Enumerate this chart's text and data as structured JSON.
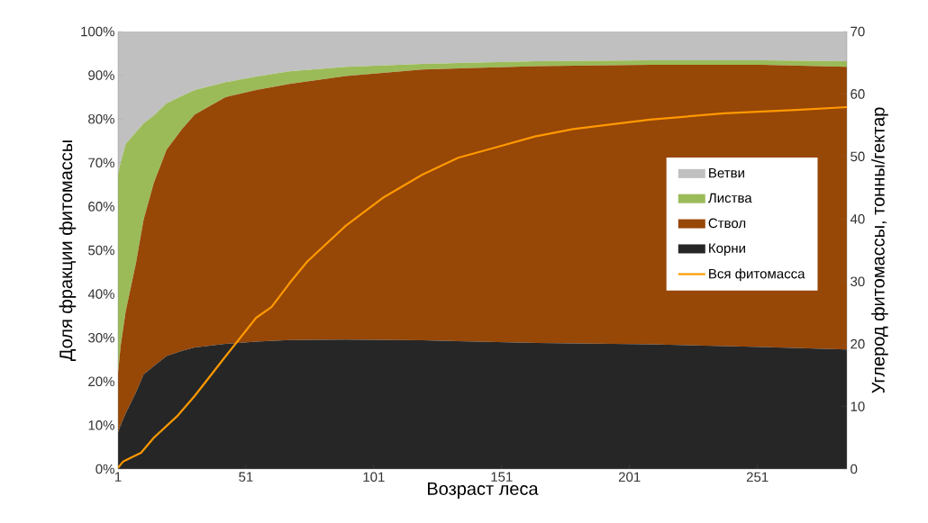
{
  "chart_data": {
    "type": "area",
    "stacked": true,
    "xlabel": "Возраст леса",
    "ylabel": "Доля фракции фитомассы",
    "y2label": "Углерод фитомассы, тонны/гектар",
    "x": [
      1,
      2,
      4,
      8,
      11,
      15,
      20,
      26,
      31,
      43,
      55,
      68,
      90,
      120,
      165,
      209,
      253,
      286
    ],
    "series": [
      {
        "name": "Корни",
        "color": "#262626",
        "values": [
          8.4,
          10,
          12.7,
          17.5,
          21.6,
          23.5,
          25.8,
          27,
          27.8,
          28.6,
          29.1,
          29.5,
          29.6,
          29.4,
          28.8,
          28.5,
          27.9,
          27.3
        ]
      },
      {
        "name": "Ствол",
        "color": "#974706",
        "values": [
          13.5,
          18,
          23.3,
          29.5,
          35.4,
          41.9,
          47.2,
          50.7,
          53.2,
          56.4,
          57.5,
          58.5,
          60.2,
          61.9,
          63.3,
          63.9,
          64.5,
          64.6
        ]
      },
      {
        "name": "Листва",
        "color": "#9bbb59",
        "values": [
          45.6,
          42,
          38.3,
          30,
          22,
          15.4,
          10.6,
          7.6,
          5.6,
          3.4,
          3.1,
          2.9,
          2.1,
          1.3,
          1.1,
          1.0,
          1.0,
          1.3
        ]
      },
      {
        "name": "Ветви",
        "color": "#c0c0c0",
        "values": [
          32.5,
          30,
          25.7,
          23,
          21,
          19.2,
          16.4,
          14.7,
          13.4,
          11.6,
          10.3,
          9.1,
          8.1,
          7.4,
          6.8,
          6.6,
          6.6,
          6.8
        ]
      },
      {
        "name": "Вся фитомасса",
        "type": "line",
        "axis": "y2",
        "color": "#ff9900",
        "x": [
          1,
          3,
          10,
          15,
          24,
          31,
          43,
          55,
          61,
          68,
          75,
          90,
          105,
          120,
          134,
          149,
          164,
          179,
          209,
          238,
          268,
          286
        ],
        "values": [
          0.2,
          1.2,
          2.6,
          5,
          8.4,
          11.7,
          18,
          24.2,
          25.9,
          29.7,
          33.2,
          38.9,
          43.5,
          47.1,
          49.8,
          51.5,
          53.2,
          54.4,
          55.9,
          56.9,
          57.5,
          57.9
        ]
      }
    ],
    "xlim": [
      1,
      286
    ],
    "xticks": [
      1,
      51,
      101,
      151,
      201,
      251
    ],
    "ylim": [
      0,
      100
    ],
    "yticks": [
      {
        "value": 0,
        "label": "0%"
      },
      {
        "value": 10,
        "label": "10%"
      },
      {
        "value": 20,
        "label": "20%"
      },
      {
        "value": 30,
        "label": "30%"
      },
      {
        "value": 40,
        "label": "40%"
      },
      {
        "value": 50,
        "label": "50%"
      },
      {
        "value": 60,
        "label": "60%"
      },
      {
        "value": 70,
        "label": "70%"
      },
      {
        "value": 80,
        "label": "80%"
      },
      {
        "value": 90,
        "label": "90%"
      },
      {
        "value": 100,
        "label": "100%"
      }
    ],
    "y2lim": [
      0,
      70
    ],
    "y2ticks": [
      0,
      10,
      20,
      30,
      40,
      50,
      60,
      70
    ],
    "legend": "right"
  }
}
